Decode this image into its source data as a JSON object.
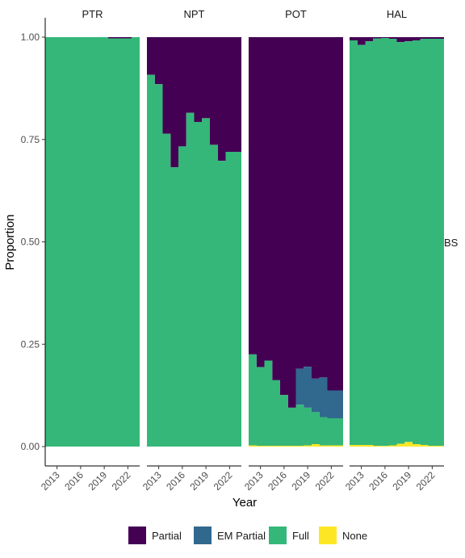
{
  "chart_data": {
    "type": "area",
    "subtype": "stacked-proportion-step-area, faceted",
    "xlabel": "Year",
    "ylabel": "Proportion",
    "ylim": [
      0,
      1
    ],
    "y_ticks": [
      "0.00",
      "0.25",
      "0.50",
      "0.75",
      "1.00"
    ],
    "x_ticks": [
      "2013",
      "2016",
      "2019",
      "2022"
    ],
    "row_strip_label": "BS",
    "legend_position": "bottom",
    "grid": false,
    "categories": [
      "Partial",
      "EM Partial",
      "Full",
      "None"
    ],
    "colors": {
      "Partial": "#440154",
      "EM Partial": "#31688e",
      "Full": "#35b779",
      "None": "#fde725"
    },
    "years": [
      2012,
      2013,
      2014,
      2015,
      2016,
      2017,
      2018,
      2019,
      2020,
      2021,
      2022,
      2023
    ],
    "facets": [
      {
        "name": "PTR",
        "None": [
          0,
          0,
          0,
          0,
          0,
          0,
          0,
          0,
          0,
          0,
          0,
          0
        ],
        "Full": [
          1,
          1,
          1,
          1,
          1,
          1,
          1,
          1,
          0.997,
          0.997,
          0.997,
          1
        ],
        "EM Partial": [
          0,
          0,
          0,
          0,
          0,
          0,
          0,
          0,
          0,
          0,
          0,
          0
        ]
      },
      {
        "name": "NPT",
        "None": [
          0,
          0,
          0,
          0,
          0,
          0,
          0,
          0,
          0,
          0,
          0,
          0
        ],
        "Full": [
          0.908,
          0.885,
          0.764,
          0.682,
          0.733,
          0.815,
          0.793,
          0.802,
          0.737,
          0.698,
          0.72,
          0.72
        ],
        "EM Partial": [
          0,
          0,
          0,
          0,
          0,
          0,
          0,
          0,
          0,
          0,
          0,
          0
        ]
      },
      {
        "name": "POT",
        "None": [
          0.003,
          0.002,
          0.002,
          0.002,
          0.002,
          0.002,
          0.002,
          0.003,
          0.006,
          0.003,
          0.003,
          0.003
        ],
        "Full": [
          0.222,
          0.192,
          0.208,
          0.16,
          0.124,
          0.093,
          0.1,
          0.092,
          0.078,
          0.069,
          0.066,
          0.066
        ],
        "EM Partial": [
          0,
          0,
          0,
          0,
          0,
          0,
          0.088,
          0.1,
          0.082,
          0.097,
          0.068,
          0.068
        ]
      },
      {
        "name": "HAL",
        "None": [
          0.004,
          0.004,
          0.004,
          0.002,
          0.002,
          0.003,
          0.007,
          0.011,
          0.006,
          0.004,
          0.002,
          0.002
        ],
        "Full": [
          0.988,
          0.977,
          0.986,
          0.995,
          0.996,
          0.993,
          0.981,
          0.979,
          0.986,
          0.992,
          0.994,
          0.994
        ],
        "EM Partial": [
          0,
          0,
          0,
          0,
          0,
          0,
          0,
          0,
          0,
          0,
          0,
          0
        ]
      }
    ]
  }
}
